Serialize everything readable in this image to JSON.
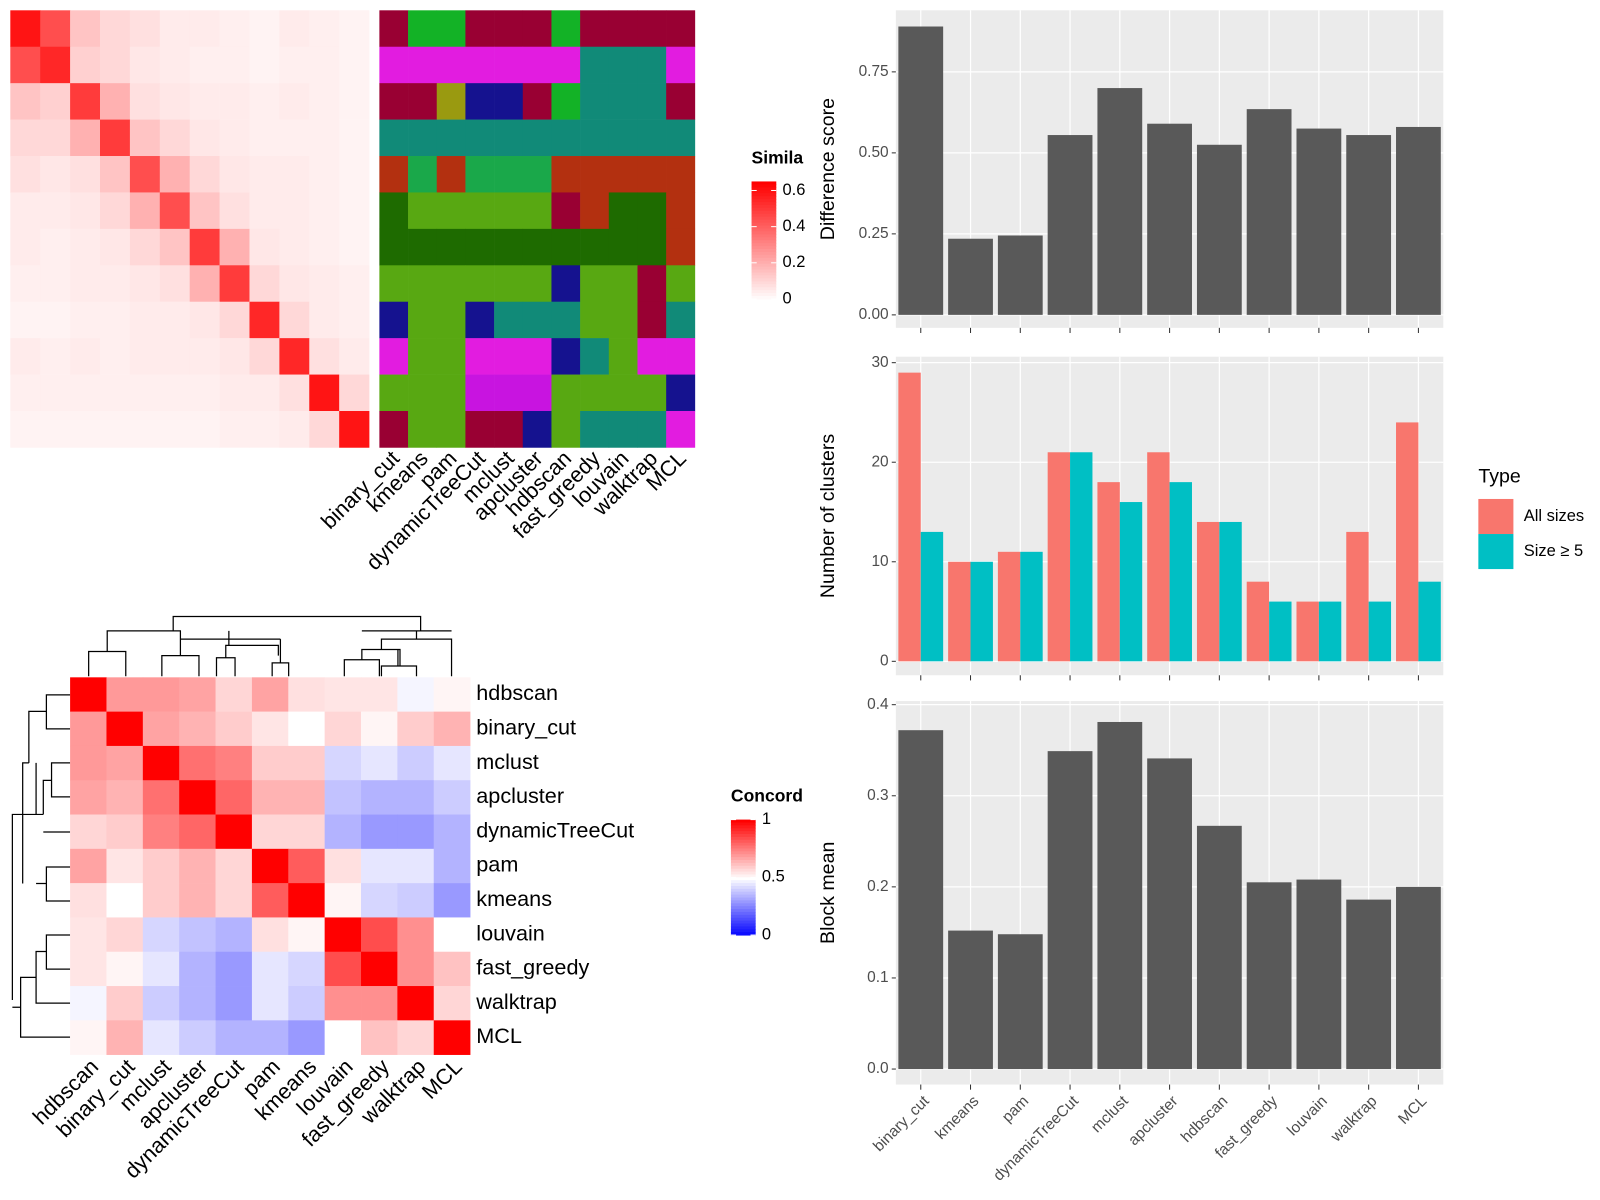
{
  "chart_data": [
    {
      "type": "similarity-heatmap",
      "legend_title": "Simila",
      "clim": [
        0,
        0.65
      ],
      "colorbar_ticks": [
        0,
        0.2,
        0.4,
        0.6
      ],
      "matrix": [
        [
          0.6,
          0.45,
          0.15,
          0.1,
          0.08,
          0.05,
          0.05,
          0.04,
          0.03,
          0.05,
          0.04,
          0.03
        ],
        [
          0.45,
          0.55,
          0.12,
          0.1,
          0.06,
          0.05,
          0.04,
          0.04,
          0.03,
          0.04,
          0.04,
          0.03
        ],
        [
          0.15,
          0.12,
          0.5,
          0.2,
          0.08,
          0.06,
          0.05,
          0.05,
          0.04,
          0.05,
          0.04,
          0.03
        ],
        [
          0.1,
          0.1,
          0.2,
          0.5,
          0.15,
          0.1,
          0.06,
          0.05,
          0.04,
          0.04,
          0.04,
          0.03
        ],
        [
          0.08,
          0.06,
          0.08,
          0.15,
          0.45,
          0.2,
          0.1,
          0.06,
          0.05,
          0.05,
          0.04,
          0.03
        ],
        [
          0.05,
          0.05,
          0.06,
          0.1,
          0.2,
          0.45,
          0.15,
          0.08,
          0.05,
          0.05,
          0.04,
          0.03
        ],
        [
          0.05,
          0.04,
          0.05,
          0.06,
          0.1,
          0.15,
          0.5,
          0.2,
          0.06,
          0.05,
          0.04,
          0.03
        ],
        [
          0.04,
          0.04,
          0.05,
          0.05,
          0.06,
          0.08,
          0.2,
          0.5,
          0.1,
          0.06,
          0.05,
          0.04
        ],
        [
          0.03,
          0.03,
          0.04,
          0.04,
          0.05,
          0.05,
          0.06,
          0.1,
          0.55,
          0.1,
          0.05,
          0.04
        ],
        [
          0.05,
          0.04,
          0.05,
          0.04,
          0.05,
          0.05,
          0.05,
          0.06,
          0.1,
          0.55,
          0.08,
          0.05
        ],
        [
          0.04,
          0.04,
          0.04,
          0.04,
          0.04,
          0.04,
          0.04,
          0.05,
          0.05,
          0.08,
          0.6,
          0.1
        ],
        [
          0.03,
          0.03,
          0.03,
          0.03,
          0.03,
          0.03,
          0.03,
          0.04,
          0.04,
          0.05,
          0.1,
          0.6
        ]
      ]
    },
    {
      "type": "cluster-tiles",
      "categories": [
        "binary_cut",
        "kmeans",
        "pam",
        "dynamicTreeCut",
        "mclust",
        "apcluster",
        "hdbscan",
        "fast_greedy",
        "louvain",
        "walktrap",
        "MCL"
      ],
      "rows": [
        [
          "#990033",
          "#13b226",
          "#13b226",
          "#990033",
          "#990033",
          "#990033",
          "#13b226",
          "#990033",
          "#990033",
          "#990033",
          "#990033"
        ],
        [
          "#e21ce0",
          "#e21ce0",
          "#e21ce0",
          "#e21ce0",
          "#e21ce0",
          "#e21ce0",
          "#e21ce0",
          "#118a78",
          "#118a78",
          "#118a78",
          "#e21ce0"
        ],
        [
          "#990033",
          "#990033",
          "#9a9a10",
          "#15128f",
          "#15128f",
          "#990033",
          "#13b226",
          "#118a78",
          "#118a78",
          "#118a78",
          "#990033"
        ],
        [
          "#118a78",
          "#118a78",
          "#118a78",
          "#118a78",
          "#118a78",
          "#118a78",
          "#118a78",
          "#118a78",
          "#118a78",
          "#118a78",
          "#118a78"
        ],
        [
          "#b33010",
          "#1aa84a",
          "#b33010",
          "#1aa84a",
          "#1aa84a",
          "#1aa84a",
          "#b33010",
          "#b33010",
          "#b33010",
          "#b33010",
          "#b33010"
        ],
        [
          "#1e6b00",
          "#58a812",
          "#58a812",
          "#58a812",
          "#58a812",
          "#58a812",
          "#990033",
          "#b33010",
          "#1e6b00",
          "#1e6b00",
          "#b33010"
        ],
        [
          "#1e6b00",
          "#1e6b00",
          "#1e6b00",
          "#1e6b00",
          "#1e6b00",
          "#1e6b00",
          "#1e6b00",
          "#1e6b00",
          "#1e6b00",
          "#1e6b00",
          "#b33010"
        ],
        [
          "#58a812",
          "#58a812",
          "#58a812",
          "#58a812",
          "#58a812",
          "#58a812",
          "#15128f",
          "#58a812",
          "#58a812",
          "#990033",
          "#58a812"
        ],
        [
          "#15128f",
          "#58a812",
          "#58a812",
          "#15128f",
          "#118a78",
          "#118a78",
          "#118a78",
          "#58a812",
          "#58a812",
          "#990033",
          "#118a78"
        ],
        [
          "#e21ce0",
          "#58a812",
          "#58a812",
          "#e21ce0",
          "#e21ce0",
          "#e21ce0",
          "#15128f",
          "#118a78",
          "#58a812",
          "#e21ce0",
          "#e21ce0"
        ],
        [
          "#58a812",
          "#58a812",
          "#58a812",
          "#c814e0",
          "#c814e0",
          "#c814e0",
          "#58a812",
          "#58a812",
          "#58a812",
          "#58a812",
          "#15128f"
        ],
        [
          "#990033",
          "#58a812",
          "#58a812",
          "#990033",
          "#990033",
          "#15128f",
          "#58a812",
          "#118a78",
          "#118a78",
          "#118a78",
          "#e21ce0"
        ]
      ]
    },
    {
      "type": "concordance-heatmap",
      "legend_title": "Concord",
      "clim": [
        0,
        1
      ],
      "colorbar_ticks": [
        0,
        0.5,
        1
      ],
      "labels": [
        "hdbscan",
        "binary_cut",
        "mclust",
        "apcluster",
        "dynamicTreeCut",
        "pam",
        "kmeans",
        "louvain",
        "fast_greedy",
        "walktrap",
        "MCL"
      ],
      "matrix": [
        [
          1,
          0.7,
          0.7,
          0.68,
          0.58,
          0.68,
          0.56,
          0.55,
          0.55,
          0.48,
          0.52
        ],
        [
          0.7,
          1,
          0.68,
          0.65,
          0.6,
          0.55,
          0.5,
          0.58,
          0.52,
          0.6,
          0.65
        ],
        [
          0.7,
          0.68,
          1,
          0.78,
          0.75,
          0.6,
          0.6,
          0.42,
          0.45,
          0.4,
          0.45
        ],
        [
          0.68,
          0.65,
          0.78,
          1,
          0.8,
          0.65,
          0.65,
          0.38,
          0.35,
          0.35,
          0.4
        ],
        [
          0.58,
          0.6,
          0.75,
          0.8,
          1,
          0.58,
          0.58,
          0.35,
          0.3,
          0.3,
          0.35
        ],
        [
          0.68,
          0.55,
          0.6,
          0.65,
          0.58,
          1,
          0.82,
          0.56,
          0.45,
          0.45,
          0.35
        ],
        [
          0.56,
          0.5,
          0.6,
          0.65,
          0.58,
          0.82,
          1,
          0.52,
          0.42,
          0.4,
          0.3
        ],
        [
          0.55,
          0.58,
          0.42,
          0.38,
          0.35,
          0.56,
          0.52,
          1,
          0.85,
          0.72,
          0.5
        ],
        [
          0.55,
          0.52,
          0.45,
          0.35,
          0.3,
          0.45,
          0.42,
          0.85,
          1,
          0.72,
          0.62
        ],
        [
          0.48,
          0.6,
          0.4,
          0.35,
          0.3,
          0.45,
          0.4,
          0.72,
          0.72,
          1,
          0.58
        ],
        [
          0.52,
          0.65,
          0.45,
          0.4,
          0.35,
          0.35,
          0.3,
          0.5,
          0.62,
          0.58,
          1
        ]
      ]
    },
    {
      "type": "bar",
      "y_label": "Difference score",
      "color": "#595959",
      "values": [
        0.89,
        0.235,
        0.245,
        0.555,
        0.7,
        0.59,
        0.525,
        0.635,
        0.575,
        0.555,
        0.58
      ],
      "ylim": [
        -0.04,
        0.94
      ],
      "yticks": [
        {
          "value": 0,
          "label": "0.00"
        },
        {
          "value": 0.25,
          "label": "0.25"
        },
        {
          "value": 0.5,
          "label": "0.50"
        },
        {
          "value": 0.75,
          "label": "0.75"
        }
      ]
    },
    {
      "type": "dodged-bar",
      "y_label": "Number of clusters",
      "legend_title": "Type",
      "series": [
        {
          "name": "All sizes",
          "color": "#F8766D",
          "values": [
            29,
            10,
            11,
            21,
            18,
            21,
            14,
            8,
            6,
            13,
            24
          ]
        },
        {
          "name": "Size ≥ 5",
          "color": "#00BFC4",
          "values": [
            13,
            10,
            11,
            21,
            16,
            18,
            14,
            6,
            6,
            6,
            8
          ]
        }
      ],
      "ylim": [
        -1.4,
        30.6
      ],
      "yticks": [
        0,
        10,
        20,
        30
      ]
    },
    {
      "type": "bar",
      "y_label": "Block mean",
      "color": "#595959",
      "categories": [
        "binary_cut",
        "kmeans",
        "pam",
        "dynamicTreeCut",
        "mclust",
        "apcluster",
        "hdbscan",
        "fast_greedy",
        "louvain",
        "walktrap",
        "MCL"
      ],
      "values": [
        0.372,
        0.152,
        0.148,
        0.349,
        0.381,
        0.341,
        0.267,
        0.205,
        0.208,
        0.186,
        0.2
      ],
      "ylim": [
        -0.017,
        0.404
      ],
      "yticks": [
        {
          "value": 0,
          "label": "0.0"
        },
        {
          "value": 0.1,
          "label": "0.1"
        },
        {
          "value": 0.2,
          "label": "0.2"
        },
        {
          "value": 0.3,
          "label": "0.3"
        },
        {
          "value": 0.4,
          "label": "0.4"
        }
      ]
    }
  ]
}
